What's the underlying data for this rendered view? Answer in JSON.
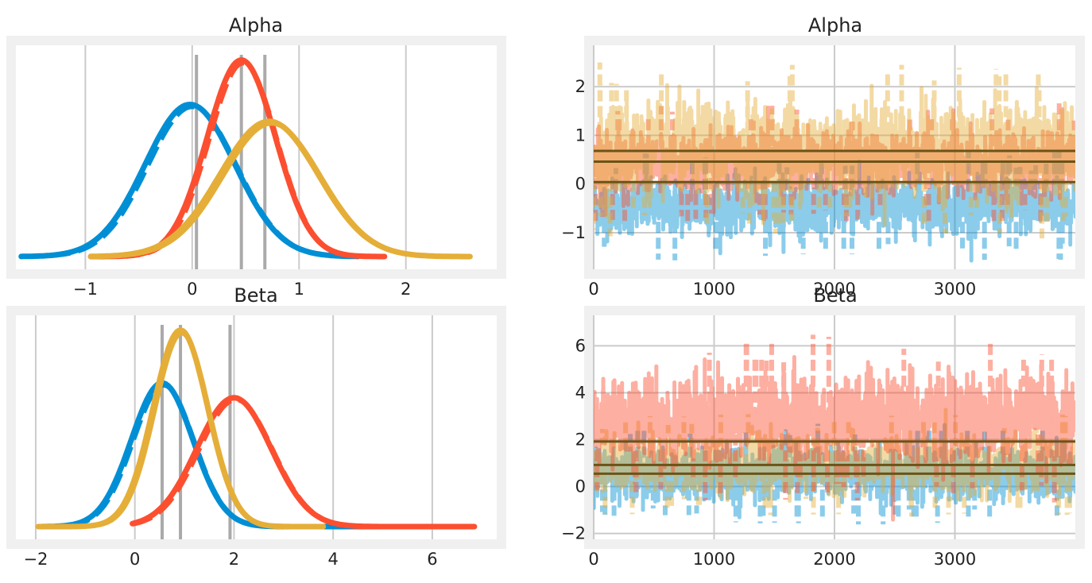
{
  "chart_data": [
    {
      "type": "line",
      "kind": "density",
      "title": "Alpha",
      "xlabel": "",
      "ylabel": "",
      "xlim": [
        -1.65,
        2.85
      ],
      "ylim": [
        -0.06,
        1.0
      ],
      "xticks": [
        -1,
        0,
        1,
        2
      ],
      "xtick_labels": [
        "−1",
        "0",
        "1",
        "2"
      ],
      "grid": "vertical",
      "y_axis": "hidden",
      "series": [
        {
          "color": "#008fd5",
          "mean": -0.02,
          "sd": 0.42,
          "range": [
            -1.6,
            1.55
          ],
          "peak": 0.72,
          "dashes": true
        },
        {
          "color": "#fc4f30",
          "mean": 0.46,
          "sd": 0.32,
          "range": [
            -0.95,
            1.8
          ],
          "peak": 0.93,
          "dashes": true
        },
        {
          "color": "#e5ae38",
          "mean": 0.72,
          "sd": 0.46,
          "range": [
            -0.95,
            2.6
          ],
          "peak": 0.64,
          "dashes": false
        }
      ],
      "reference_lines": [
        0.04,
        0.46,
        0.68
      ]
    },
    {
      "type": "line",
      "kind": "trace",
      "title": "Alpha",
      "xlabel": "",
      "ylabel": "",
      "xlim": [
        0,
        4000
      ],
      "ylim": [
        -1.75,
        2.85
      ],
      "xticks": [
        0,
        1000,
        2000,
        3000
      ],
      "xtick_labels": [
        "0",
        "1000",
        "2000",
        "3000"
      ],
      "yticks": [
        -1,
        0,
        1,
        2
      ],
      "ytick_labels": [
        "−1",
        "0",
        "1",
        "2"
      ],
      "grid": "both",
      "series": [
        {
          "color": "#008fd5",
          "center": -0.45,
          "spread": 0.28
        },
        {
          "color": "#fc4f30",
          "center": 0.45,
          "spread": 0.32
        },
        {
          "color": "#e5ae38",
          "center": 0.72,
          "spread": 0.46
        }
      ],
      "reference_lines": [
        0.04,
        0.46,
        0.68
      ]
    },
    {
      "type": "line",
      "kind": "density",
      "title": "Beta",
      "xlabel": "",
      "ylabel": "",
      "xlim": [
        -2.4,
        7.3
      ],
      "ylim": [
        -0.06,
        1.0
      ],
      "xticks": [
        -2,
        0,
        2,
        4,
        6
      ],
      "xtick_labels": [
        "−2",
        "0",
        "2",
        "4",
        "6"
      ],
      "grid": "vertical",
      "y_axis": "hidden",
      "series": [
        {
          "color": "#008fd5",
          "mean": 0.55,
          "sd": 0.62,
          "range": [
            -1.9,
            5.6
          ],
          "peak": 0.68,
          "dashes": true
        },
        {
          "color": "#fc4f30",
          "mean": 2.0,
          "sd": 0.75,
          "range": [
            -0.05,
            6.85
          ],
          "peak": 0.61,
          "dashes": true
        },
        {
          "color": "#e5ae38",
          "mean": 0.92,
          "sd": 0.55,
          "range": [
            -1.95,
            3.8
          ],
          "peak": 0.93,
          "dashes": false
        }
      ],
      "reference_lines": [
        0.55,
        0.92,
        1.92
      ]
    },
    {
      "type": "line",
      "kind": "trace",
      "title": "Beta",
      "xlabel": "",
      "ylabel": "",
      "xlim": [
        0,
        4000
      ],
      "ylim": [
        -2.25,
        7.3
      ],
      "xticks": [
        0,
        1000,
        2000,
        3000
      ],
      "xtick_labels": [
        "0",
        "1000",
        "2000",
        "3000"
      ],
      "yticks": [
        -2,
        0,
        2,
        4,
        6
      ],
      "ytick_labels": [
        "−2",
        "0",
        "2",
        "4",
        "6"
      ],
      "grid": "both",
      "series": [
        {
          "color": "#008fd5",
          "center": 0.55,
          "spread": 0.55
        },
        {
          "color": "#e5ae38",
          "center": 0.92,
          "spread": 0.55
        },
        {
          "color": "#fc4f30",
          "center": 2.9,
          "spread": 0.9
        }
      ],
      "reference_lines": [
        0.55,
        0.92,
        1.92
      ]
    }
  ]
}
